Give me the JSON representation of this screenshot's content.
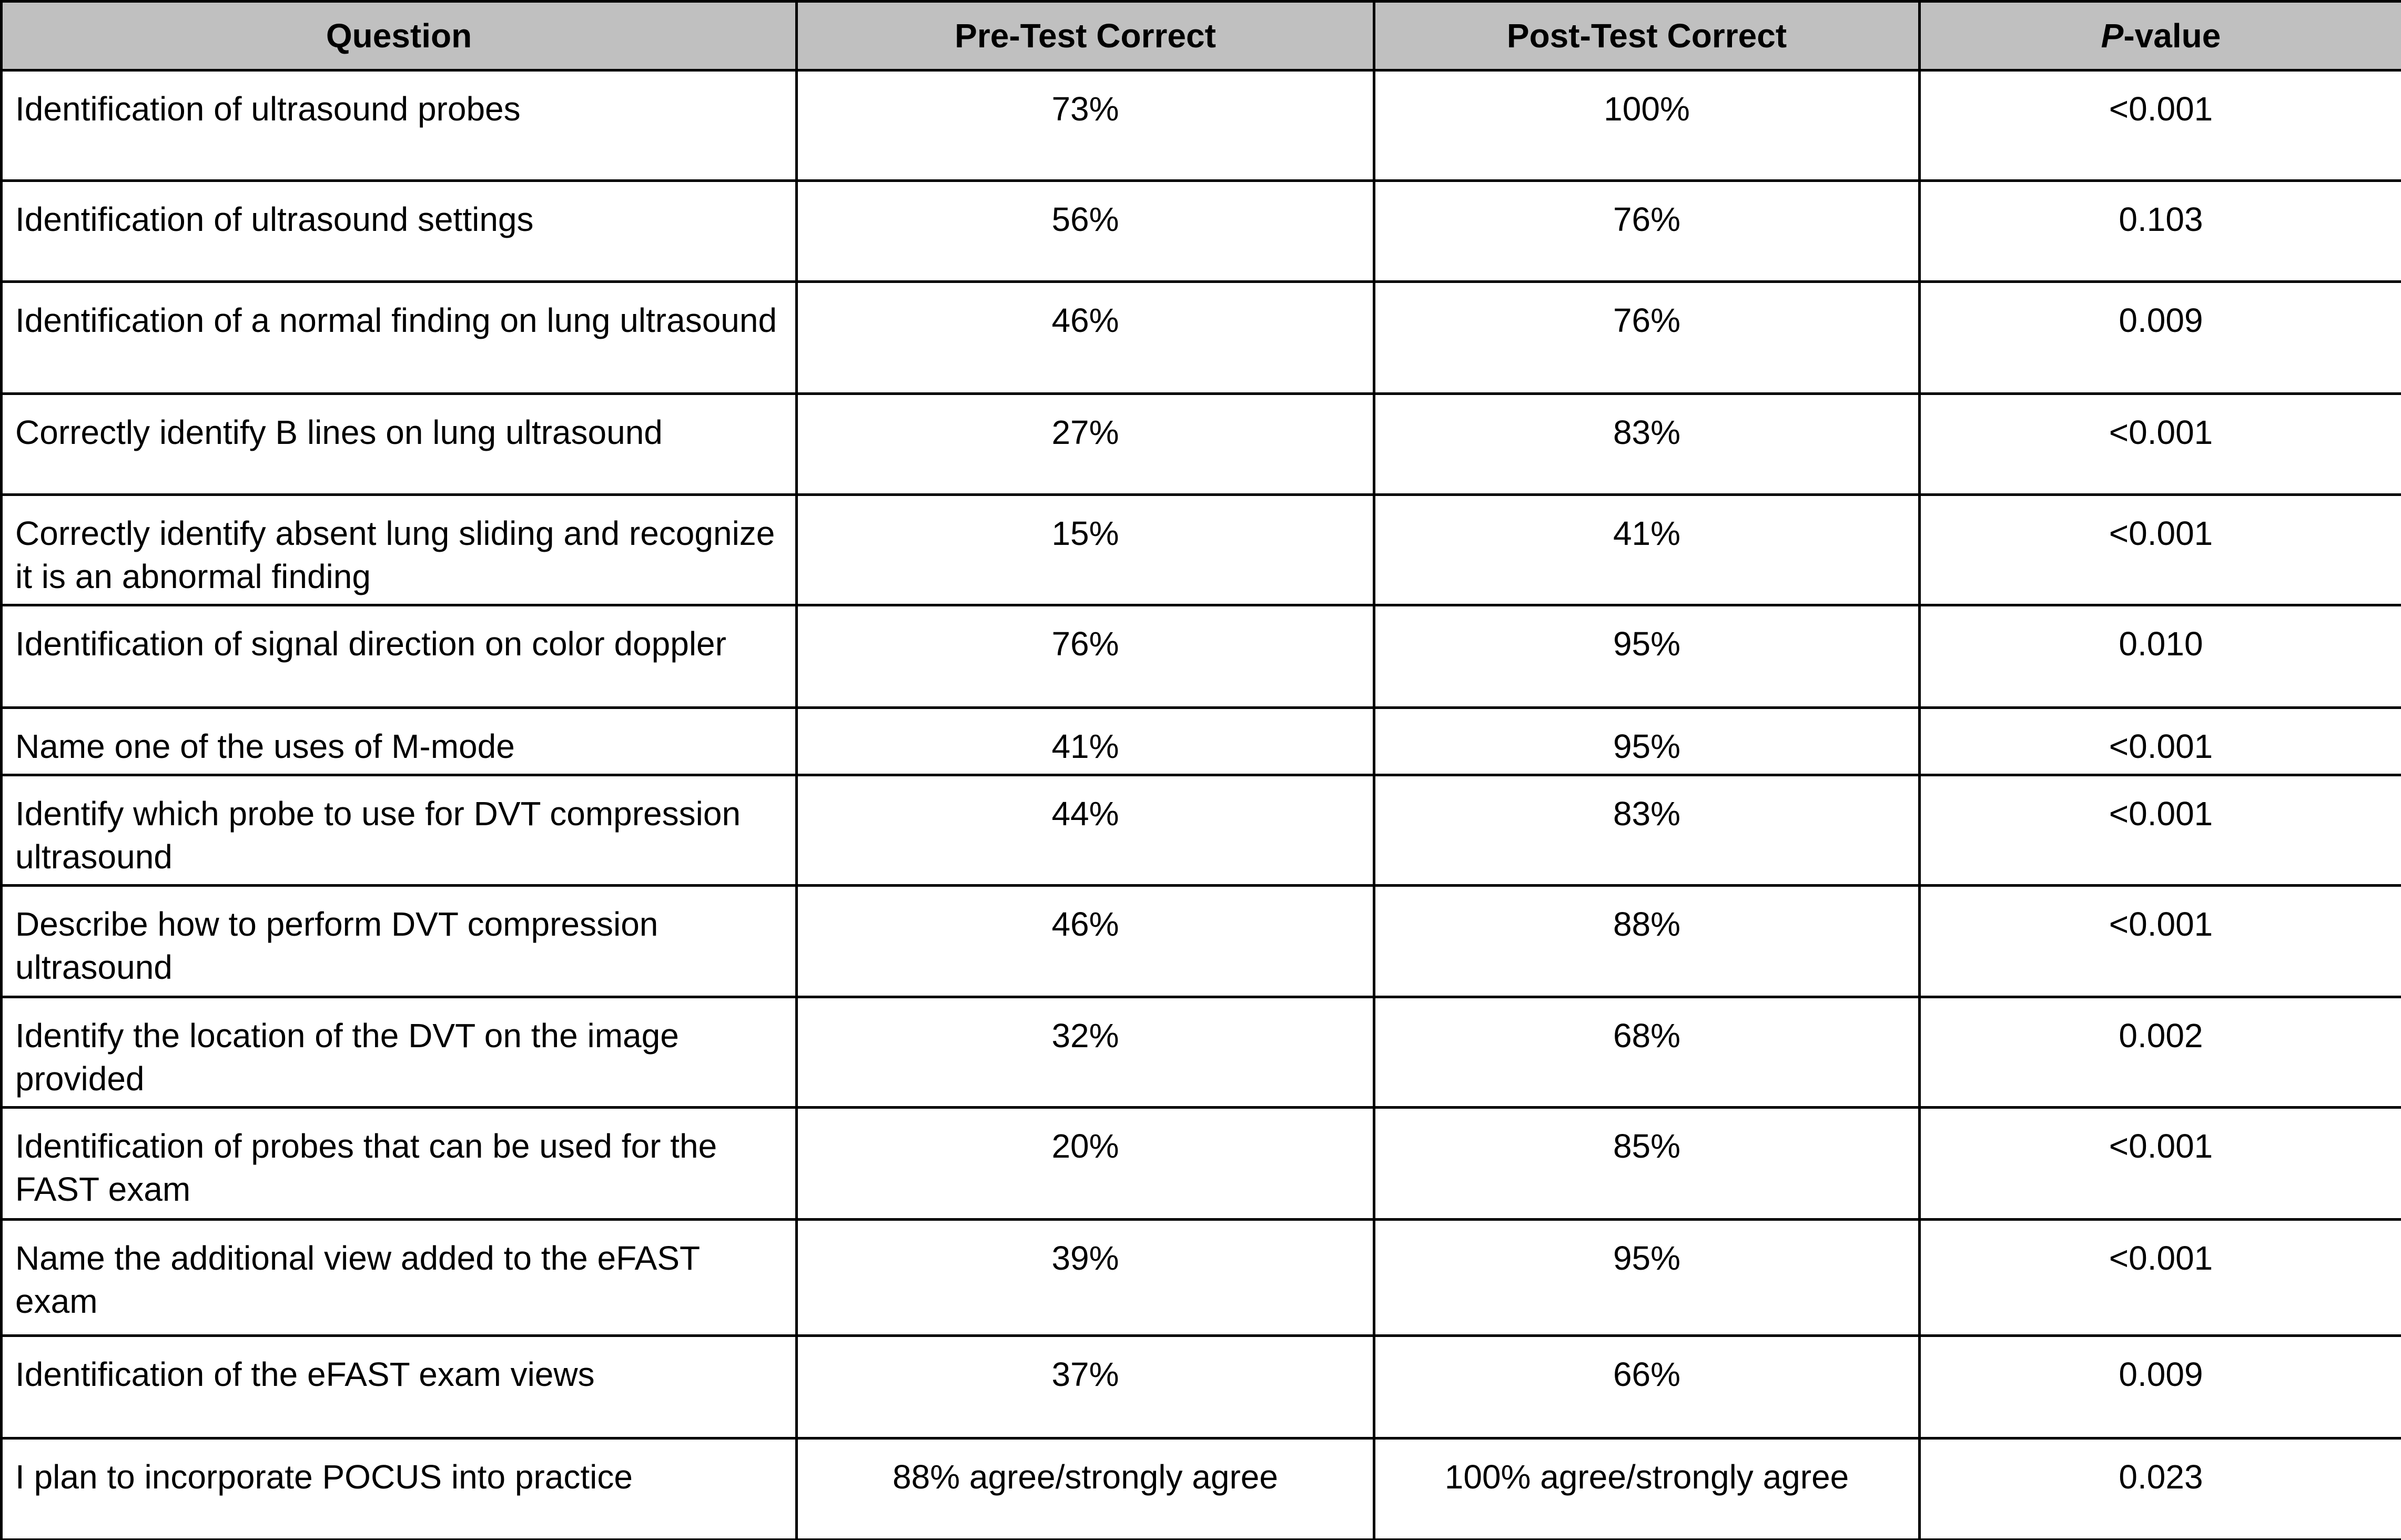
{
  "table": {
    "headers": [
      "Question",
      "Pre-Test Correct",
      "Post-Test Correct",
      [
        "P",
        "-value"
      ]
    ],
    "rows": [
      [
        "Identification of ultrasound probes",
        "73%",
        "100%",
        "<0.001"
      ],
      [
        "Identification of ultrasound settings",
        "56%",
        "76%",
        "0.103"
      ],
      [
        "Identification of a normal finding on lung ultrasound",
        "46%",
        "76%",
        "0.009"
      ],
      [
        "Correctly identify B lines on lung ultrasound",
        "27%",
        "83%",
        "<0.001"
      ],
      [
        "Correctly identify absent lung sliding and recognize it is an abnormal finding",
        "15%",
        "41%",
        "<0.001"
      ],
      [
        "Identification of signal direction on color doppler",
        "76%",
        "95%",
        "0.010"
      ],
      [
        "Name one of the uses of M-mode",
        "41%",
        "95%",
        "<0.001"
      ],
      [
        "Identify which probe to use for DVT compression ultrasound",
        "44%",
        "83%",
        "<0.001"
      ],
      [
        "Describe how to perform DVT compression ultrasound",
        "46%",
        "88%",
        "<0.001"
      ],
      [
        "Identify the location of the DVT on the image provided",
        "32%",
        "68%",
        "0.002"
      ],
      [
        "Identification of probes that can be used for the FAST exam",
        "20%",
        "85%",
        "<0.001"
      ],
      [
        "Name the additional view added to the eFAST exam",
        "39%",
        "95%",
        "<0.001"
      ],
      [
        "Identification of the eFAST exam views",
        "37%",
        "66%",
        "0.009"
      ],
      [
        "I plan to incorporate POCUS into practice",
        "88% agree/strongly agree",
        "100% agree/strongly agree",
        "0.023"
      ]
    ]
  }
}
